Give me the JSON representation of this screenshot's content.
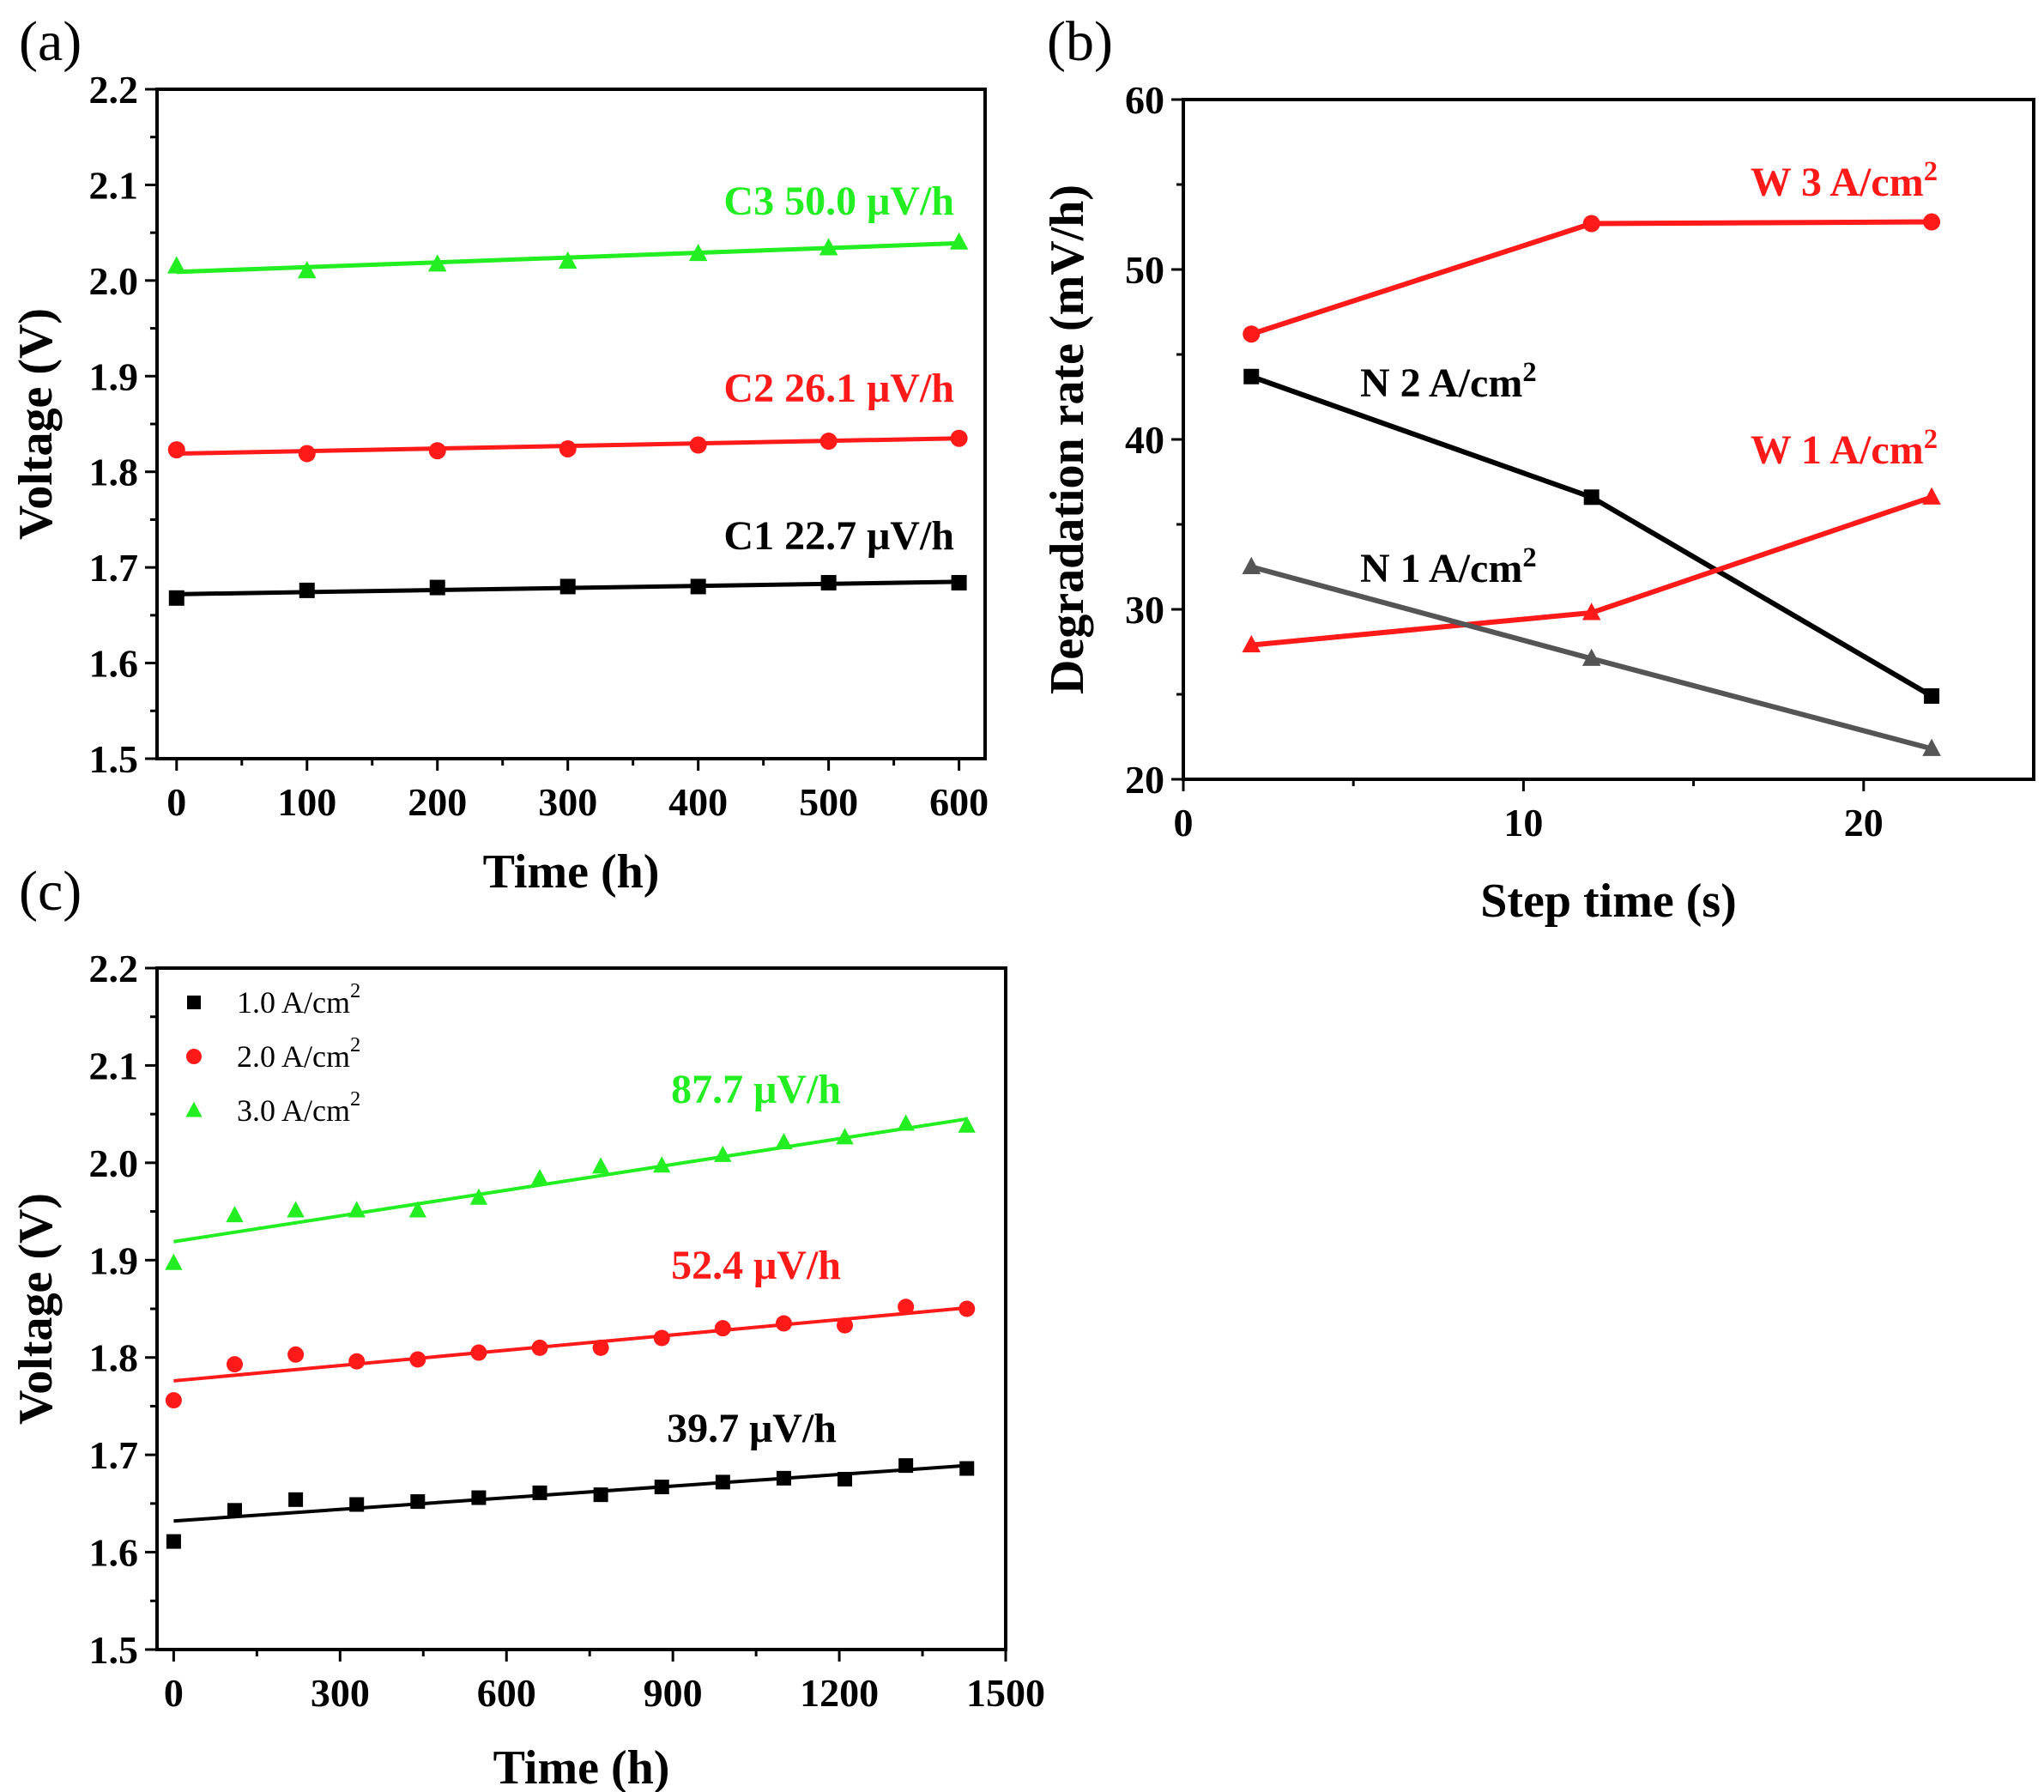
{
  "figure": {
    "labels": {
      "a": "(a)",
      "b": "(b)",
      "c": "(c)"
    }
  },
  "colors": {
    "black": "#000000",
    "red": "#ff1a1a",
    "green": "#22ee22",
    "gray": "#555555"
  },
  "chart_data": [
    {
      "id": "a",
      "type": "scatter",
      "title": "",
      "xlabel": "Time (h)",
      "ylabel": "Voltage (V)",
      "xlim": [
        -15,
        620
      ],
      "ylim": [
        1.5,
        2.2
      ],
      "xticks": [
        0,
        100,
        200,
        300,
        400,
        500,
        600
      ],
      "yticks": [
        1.5,
        1.6,
        1.7,
        1.8,
        1.9,
        2.0,
        2.1,
        2.2
      ],
      "ytick_labels": [
        "1.5",
        "1.6",
        "1.7",
        "1.8",
        "1.9",
        "2.0",
        "2.1",
        "2.2"
      ],
      "series": [
        {
          "name": "C1",
          "annotation": "C1  22.7 μV/h",
          "color": "#000000",
          "marker": "square",
          "x": [
            0,
            100,
            200,
            300,
            400,
            500,
            600
          ],
          "y": [
            1.668,
            1.676,
            1.679,
            1.68,
            1.68,
            1.684,
            1.684
          ],
          "fit": [
            [
              0,
              1.672
            ],
            [
              600,
              1.685
            ]
          ]
        },
        {
          "name": "C2",
          "annotation": "C2  26.1 μV/h",
          "color": "#ff1a1a",
          "marker": "circle",
          "x": [
            0,
            100,
            200,
            300,
            400,
            500,
            600
          ],
          "y": [
            1.823,
            1.819,
            1.822,
            1.824,
            1.828,
            1.832,
            1.835
          ],
          "fit": [
            [
              0,
              1.819
            ],
            [
              600,
              1.835
            ]
          ]
        },
        {
          "name": "C3",
          "annotation": "C3  50.0 μV/h",
          "color": "#22ee22",
          "marker": "triangle",
          "x": [
            0,
            100,
            200,
            300,
            400,
            500,
            600
          ],
          "y": [
            2.015,
            2.01,
            2.017,
            2.02,
            2.028,
            2.034,
            2.04
          ],
          "fit": [
            [
              0,
              2.009
            ],
            [
              600,
              2.039
            ]
          ]
        }
      ]
    },
    {
      "id": "b",
      "type": "line",
      "title": "",
      "xlabel": "Step time (s)",
      "ylabel": "Degradation rate (mV/h)",
      "xlim": [
        0,
        25
      ],
      "ylim": [
        20,
        60
      ],
      "xticks": [
        0,
        10,
        20
      ],
      "yticks": [
        20,
        30,
        40,
        50,
        60
      ],
      "series": [
        {
          "name": "W 3 A/cm2",
          "label_main": "W 3 A/cm",
          "label_sup": "2",
          "color": "#ff1a1a",
          "marker": "circle",
          "x": [
            2,
            12,
            22
          ],
          "y": [
            46.2,
            52.7,
            52.8
          ]
        },
        {
          "name": "N 2 A/cm2",
          "label_main": "N 2 A/cm",
          "label_sup": "2",
          "color": "#000000",
          "marker": "square",
          "x": [
            2,
            12,
            22
          ],
          "y": [
            43.7,
            36.6,
            24.9
          ]
        },
        {
          "name": "W 1 A/cm2",
          "label_main": "W 1 A/cm",
          "label_sup": "2",
          "color": "#ff1a1a",
          "marker": "triangle",
          "x": [
            2,
            12,
            22
          ],
          "y": [
            27.9,
            29.8,
            36.6
          ]
        },
        {
          "name": "N 1 A/cm2",
          "label_main": "N 1 A/cm",
          "label_sup": "2",
          "color": "#555555",
          "marker": "triangle",
          "x": [
            2,
            12,
            22
          ],
          "y": [
            32.5,
            27.1,
            21.8
          ]
        }
      ]
    },
    {
      "id": "c",
      "type": "scatter",
      "title": "",
      "xlabel": "Time (h)",
      "ylabel": "Voltage (V)",
      "xlim": [
        -30,
        1500
      ],
      "ylim": [
        1.5,
        2.2
      ],
      "xticks": [
        0,
        300,
        600,
        900,
        1200,
        1500
      ],
      "yticks": [
        1.5,
        1.6,
        1.7,
        1.8,
        1.9,
        2.0,
        2.1,
        2.2
      ],
      "ytick_labels": [
        "1.5",
        "1.6",
        "1.7",
        "1.8",
        "1.9",
        "2.0",
        "2.1",
        "2.2"
      ],
      "legend_position": "top-left",
      "series": [
        {
          "name": "1.0 A/cm2",
          "legend_main": "1.0 A/cm",
          "legend_sup": "2",
          "annotation": "39.7 μV/h",
          "color": "#000000",
          "marker": "square",
          "x": [
            0,
            110,
            220,
            330,
            440,
            550,
            660,
            770,
            880,
            990,
            1100,
            1210,
            1320,
            1430
          ],
          "y": [
            1.611,
            1.643,
            1.654,
            1.649,
            1.652,
            1.656,
            1.661,
            1.659,
            1.667,
            1.672,
            1.676,
            1.675,
            1.689,
            1.686
          ],
          "fit": [
            [
              0,
              1.632
            ],
            [
              1430,
              1.689
            ]
          ]
        },
        {
          "name": "2.0 A/cm2",
          "legend_main": "2.0 A/cm",
          "legend_sup": "2",
          "annotation": "52.4 μV/h",
          "color": "#ff1a1a",
          "marker": "circle",
          "x": [
            0,
            110,
            220,
            330,
            440,
            550,
            660,
            770,
            880,
            990,
            1100,
            1210,
            1320,
            1430
          ],
          "y": [
            1.756,
            1.793,
            1.803,
            1.796,
            1.798,
            1.805,
            1.81,
            1.81,
            1.82,
            1.83,
            1.835,
            1.833,
            1.852,
            1.85
          ],
          "fit": [
            [
              0,
              1.776
            ],
            [
              1430,
              1.851
            ]
          ]
        },
        {
          "name": "3.0 A/cm2",
          "legend_main": "3.0 A/cm",
          "legend_sup": "2",
          "annotation": "87.7 μV/h",
          "color": "#22ee22",
          "marker": "triangle",
          "x": [
            0,
            110,
            220,
            330,
            440,
            550,
            660,
            770,
            880,
            990,
            1100,
            1210,
            1320,
            1430
          ],
          "y": [
            1.897,
            1.946,
            1.951,
            1.951,
            1.951,
            1.964,
            1.984,
            1.996,
            1.997,
            2.008,
            2.021,
            2.026,
            2.04,
            2.038
          ],
          "fit": [
            [
              0,
              1.919
            ],
            [
              1430,
              2.045
            ]
          ]
        }
      ]
    }
  ]
}
